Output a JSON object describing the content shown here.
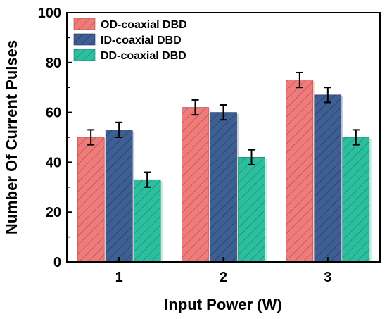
{
  "chart_data": {
    "type": "bar",
    "xlabel": "Input Power (W)",
    "ylabel": "Number Of Current Pulses",
    "categories": [
      "1",
      "2",
      "3"
    ],
    "ylim": [
      0,
      100
    ],
    "yticks": [
      "0",
      "20",
      "40",
      "60",
      "80",
      "100"
    ],
    "legend_position": "top-left",
    "series": [
      {
        "name": "OD-coaxial DBD",
        "color": "#f07b7b",
        "hatch_color": "#a84a4a",
        "values": [
          50,
          62,
          73
        ],
        "errors": [
          3,
          3,
          3
        ]
      },
      {
        "name": "ID-coaxial DBD",
        "color": "#3e5f93",
        "hatch_color": "#1f3459",
        "values": [
          53,
          60,
          67
        ],
        "errors": [
          3,
          3,
          3
        ]
      },
      {
        "name": "DD-coaxial DBD",
        "color": "#2bbf9f",
        "hatch_color": "#1a7d66",
        "values": [
          33,
          42,
          50
        ],
        "errors": [
          3,
          3,
          3
        ]
      }
    ]
  }
}
